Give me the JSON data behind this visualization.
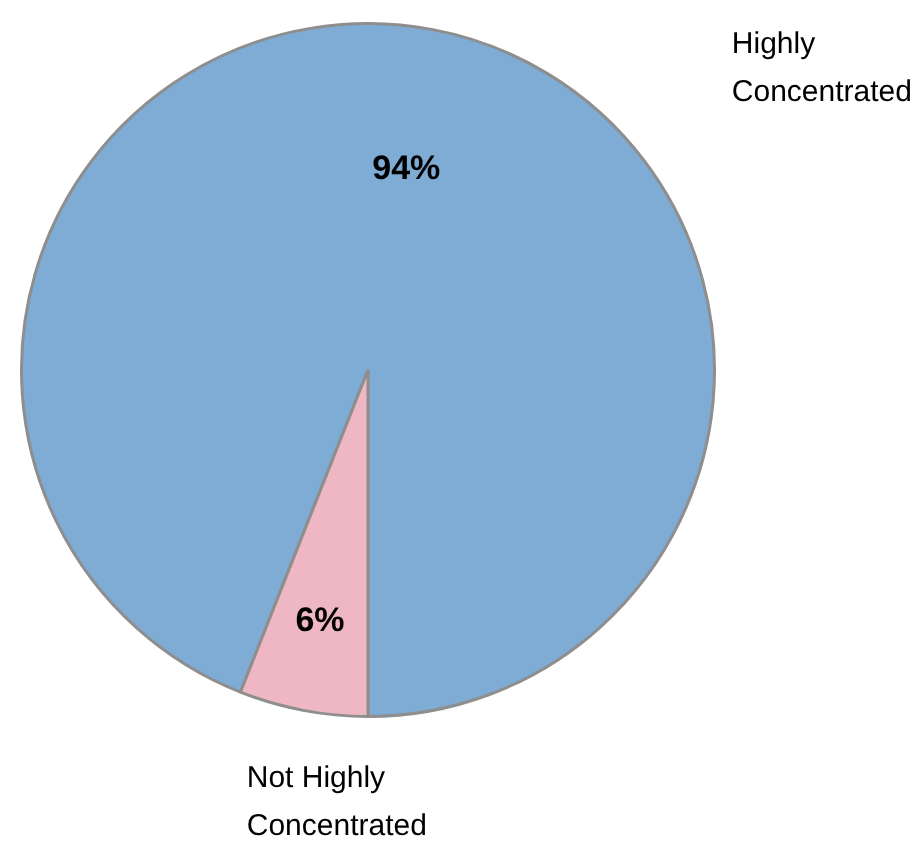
{
  "chart_data": {
    "type": "pie",
    "categories": [
      "Highly Concentrated",
      "Not Highly Concentrated"
    ],
    "values": [
      94,
      6
    ],
    "colors": [
      "#7eacd5",
      "#efb7c3"
    ],
    "value_labels": [
      "94%",
      "6%"
    ],
    "legend": false
  }
}
